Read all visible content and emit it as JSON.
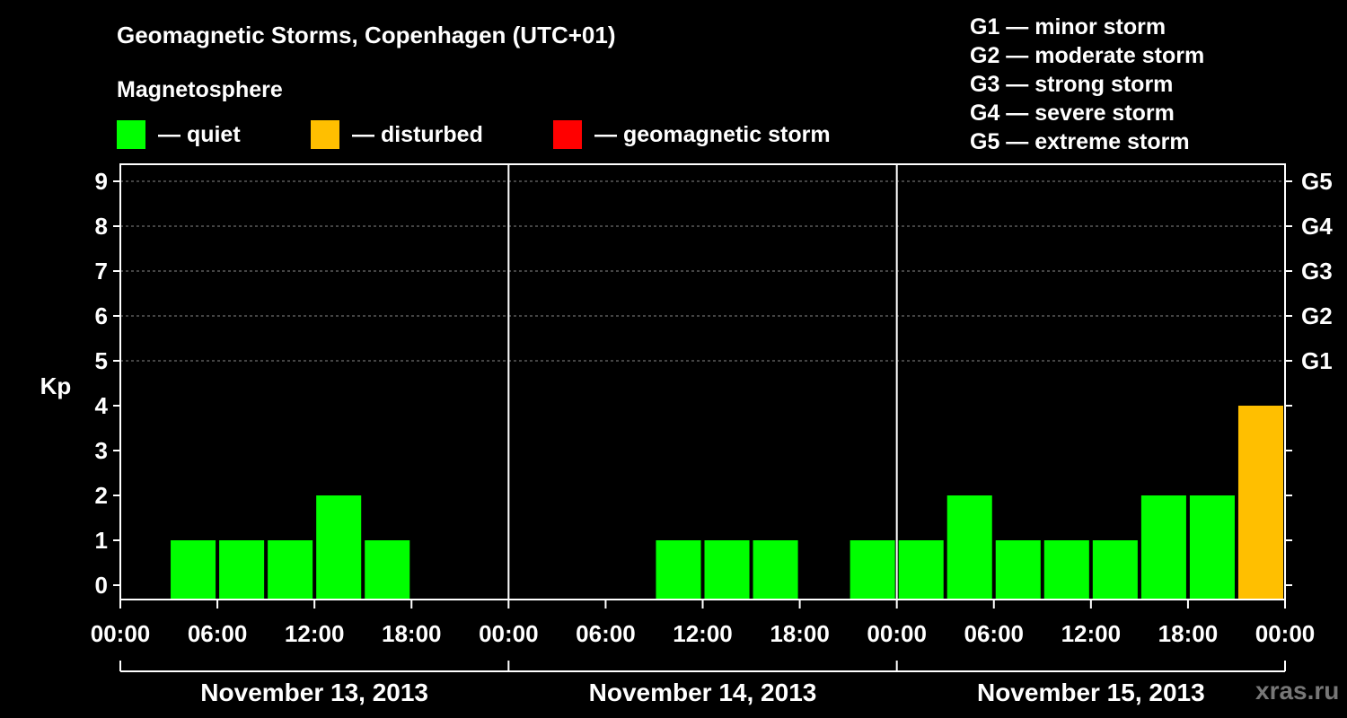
{
  "title": "Geomagnetic Storms, Copenhagen (UTC+01)",
  "subtitle": "Magnetosphere",
  "legend": [
    {
      "label": "— quiet",
      "color": "#00ff00"
    },
    {
      "label": "— disturbed",
      "color": "#ffbf00"
    },
    {
      "label": "— geomagnetic storm",
      "color": "#ff0000"
    }
  ],
  "storm_scale": [
    "G1 — minor storm",
    "G2 — moderate storm",
    "G3 — strong storm",
    "G4 — severe storm",
    "G5 — extreme storm"
  ],
  "watermark": "xras.ru",
  "chart_data": {
    "type": "bar",
    "ylabel": "Kp",
    "ylim": [
      0,
      9
    ],
    "y_ticks": [
      0,
      1,
      2,
      3,
      4,
      5,
      6,
      7,
      8,
      9
    ],
    "right_ticks": [
      {
        "kp": 5,
        "label": "G1"
      },
      {
        "kp": 6,
        "label": "G2"
      },
      {
        "kp": 7,
        "label": "G3"
      },
      {
        "kp": 8,
        "label": "G4"
      },
      {
        "kp": 9,
        "label": "G5"
      }
    ],
    "grid": "dashed horizontal at Kp 5-9",
    "x_tick_labels": [
      "00:00",
      "06:00",
      "12:00",
      "18:00",
      "00:00",
      "06:00",
      "12:00",
      "18:00",
      "00:00",
      "06:00",
      "12:00",
      "18:00",
      "00:00"
    ],
    "days": [
      "November 13, 2013",
      "November 14, 2013",
      "November 15, 2013"
    ],
    "bars": [
      {
        "day": 0,
        "start_hour": 3,
        "kp": 1,
        "status": "quiet"
      },
      {
        "day": 0,
        "start_hour": 6,
        "kp": 1,
        "status": "quiet"
      },
      {
        "day": 0,
        "start_hour": 9,
        "kp": 1,
        "status": "quiet"
      },
      {
        "day": 0,
        "start_hour": 12,
        "kp": 2,
        "status": "quiet"
      },
      {
        "day": 0,
        "start_hour": 15,
        "kp": 1,
        "status": "quiet"
      },
      {
        "day": 1,
        "start_hour": 9,
        "kp": 1,
        "status": "quiet"
      },
      {
        "day": 1,
        "start_hour": 12,
        "kp": 1,
        "status": "quiet"
      },
      {
        "day": 1,
        "start_hour": 15,
        "kp": 1,
        "status": "quiet"
      },
      {
        "day": 1,
        "start_hour": 21,
        "kp": 1,
        "status": "quiet"
      },
      {
        "day": 2,
        "start_hour": 0,
        "kp": 1,
        "status": "quiet"
      },
      {
        "day": 2,
        "start_hour": 3,
        "kp": 2,
        "status": "quiet"
      },
      {
        "day": 2,
        "start_hour": 6,
        "kp": 1,
        "status": "quiet"
      },
      {
        "day": 2,
        "start_hour": 9,
        "kp": 1,
        "status": "quiet"
      },
      {
        "day": 2,
        "start_hour": 12,
        "kp": 1,
        "status": "quiet"
      },
      {
        "day": 2,
        "start_hour": 15,
        "kp": 2,
        "status": "quiet"
      },
      {
        "day": 2,
        "start_hour": 18,
        "kp": 2,
        "status": "quiet"
      },
      {
        "day": 2,
        "start_hour": 21,
        "kp": 4,
        "status": "disturbed"
      }
    ],
    "status_colors": {
      "quiet": "#00ff00",
      "disturbed": "#ffbf00",
      "storm": "#ff0000"
    }
  }
}
